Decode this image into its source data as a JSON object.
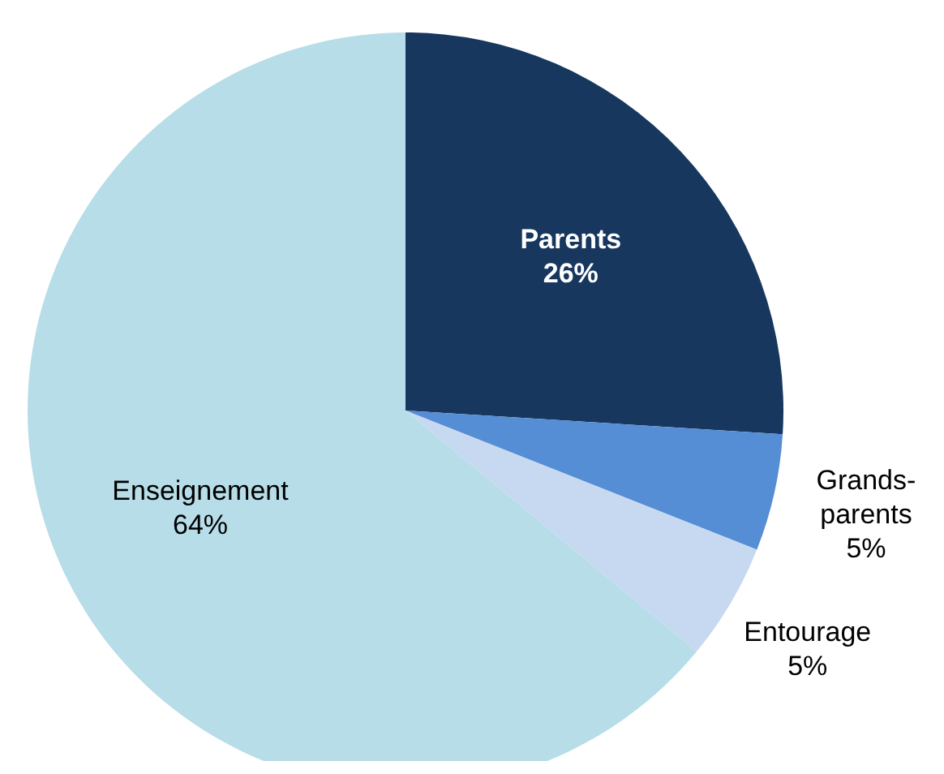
{
  "chart_data": {
    "type": "pie",
    "categories": [
      "Parents",
      "Grands-parents",
      "Entourage",
      "Enseignement"
    ],
    "values": [
      26,
      5,
      5,
      64
    ],
    "colors": [
      "#17375e",
      "#558ed5",
      "#c6d9f1",
      "#b7dde8"
    ],
    "value_labels": [
      "26%",
      "5%",
      "5%",
      "64%"
    ]
  }
}
